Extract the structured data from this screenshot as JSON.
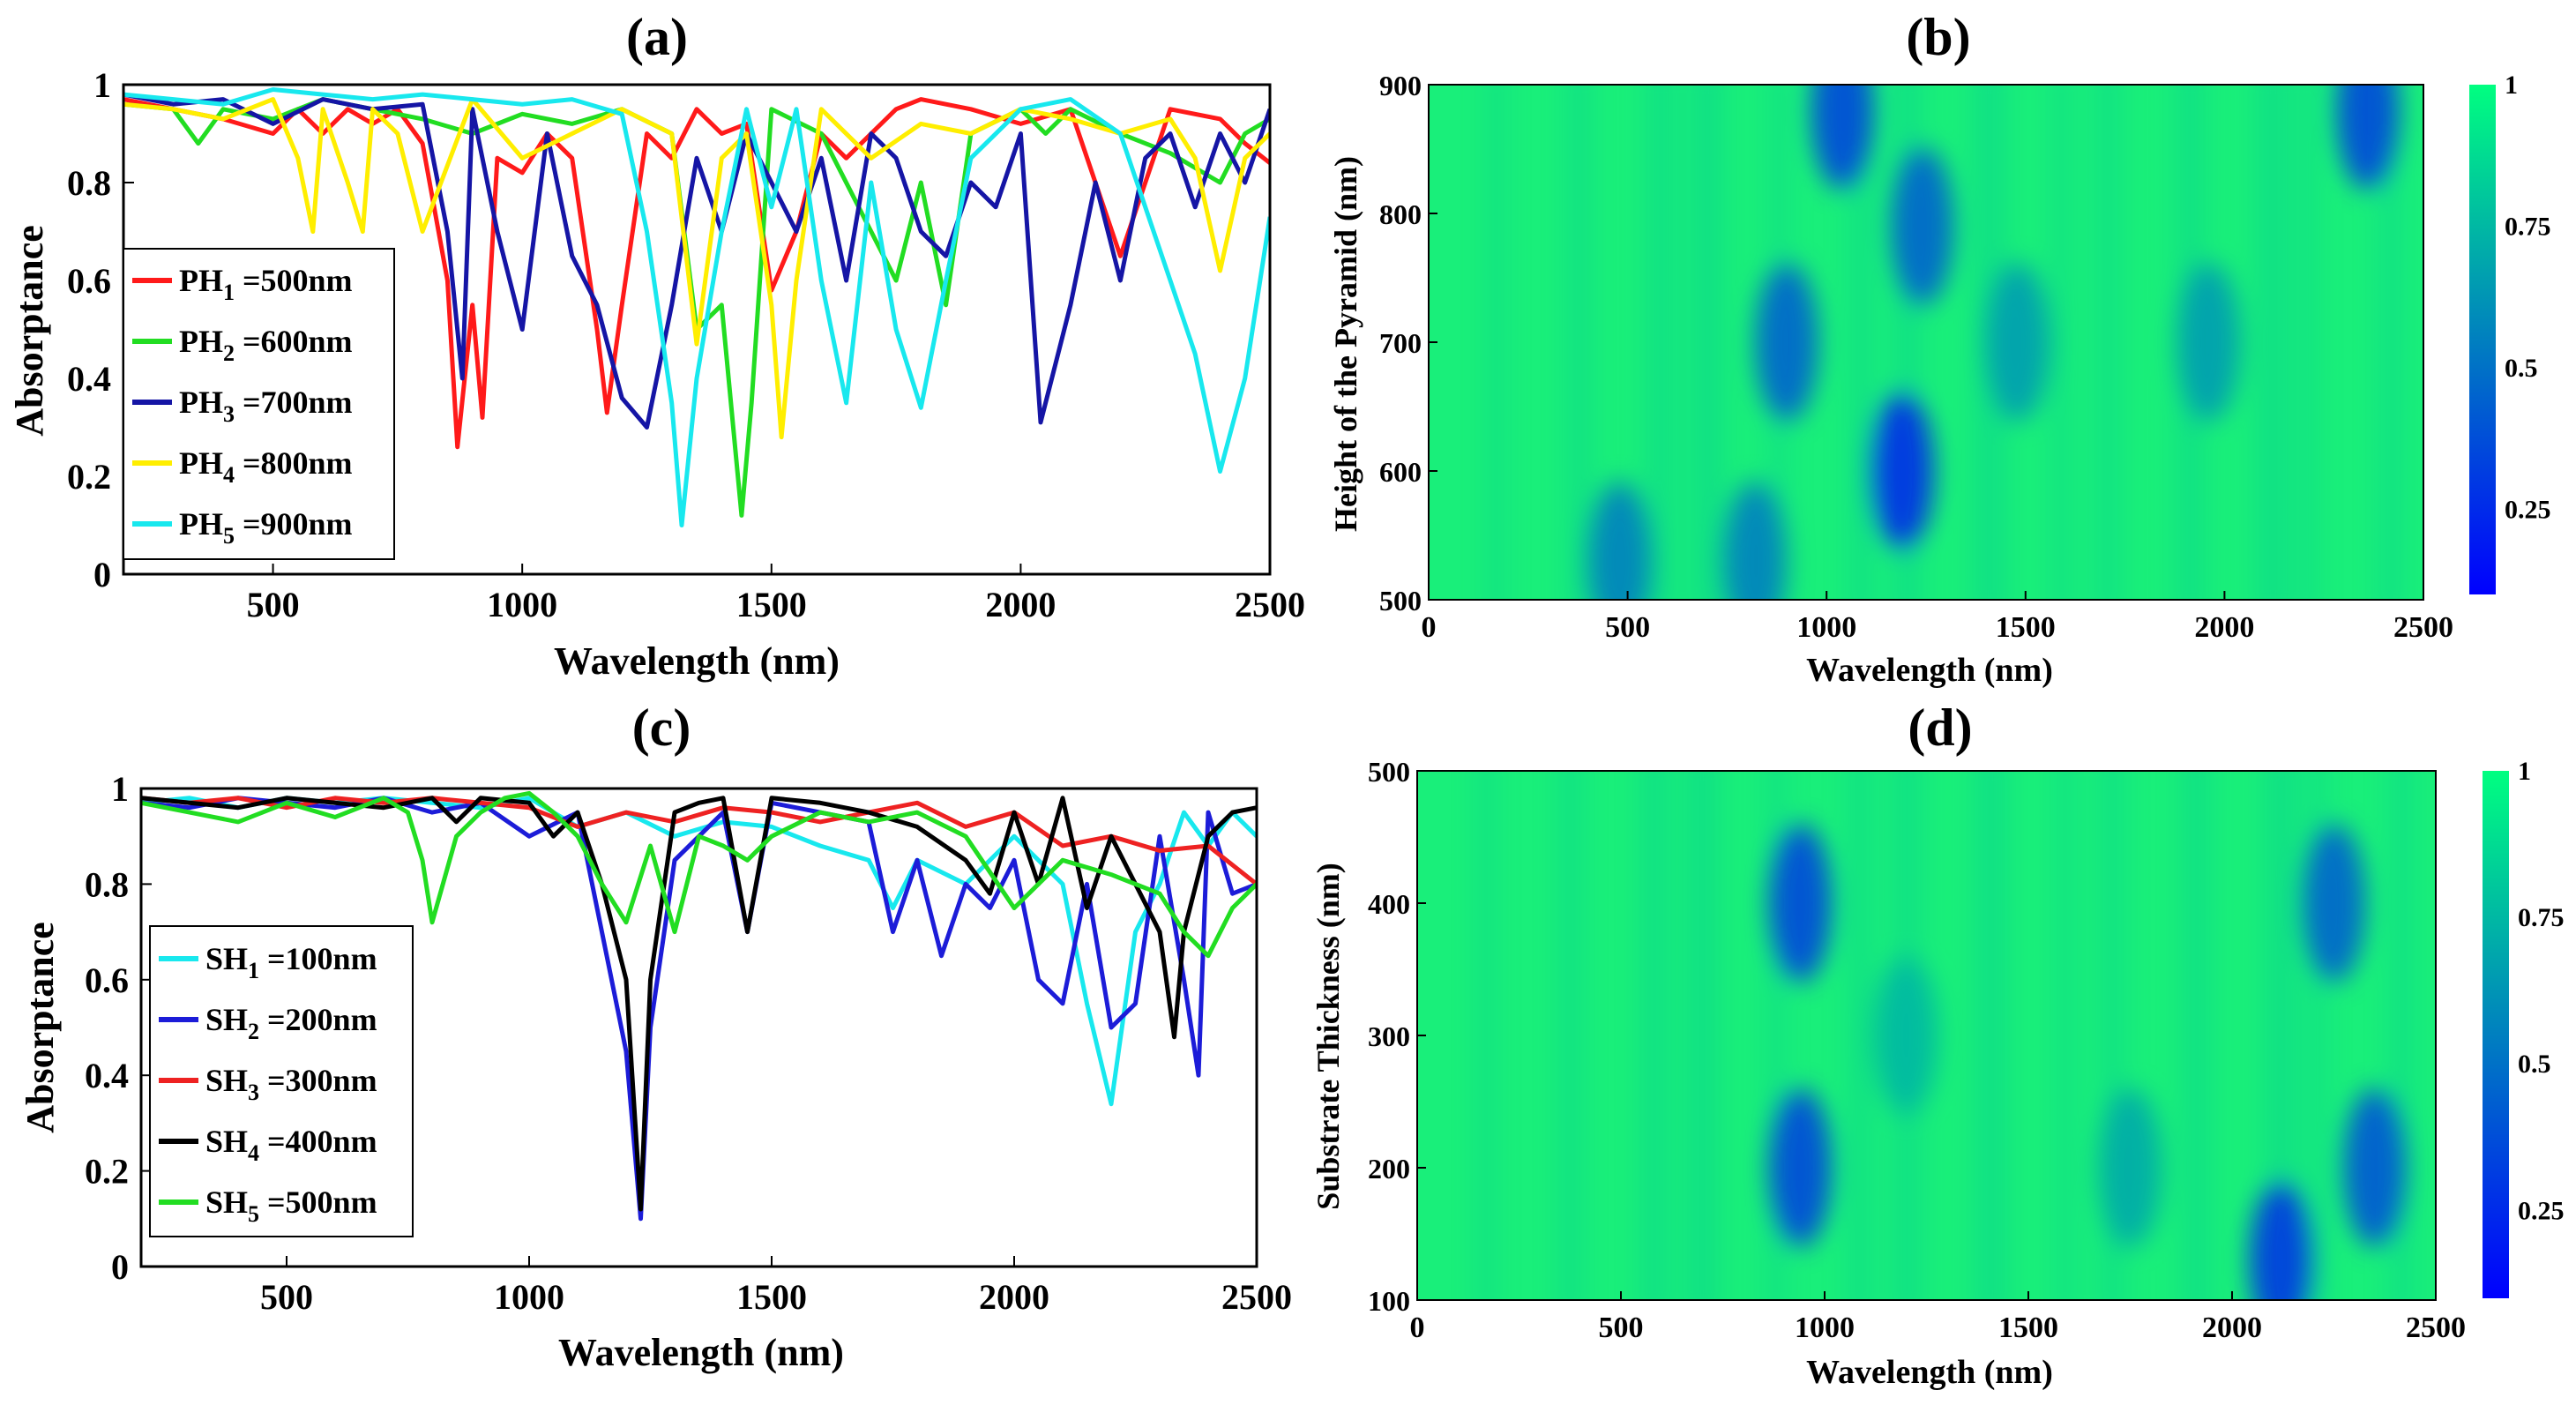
{
  "panels": {
    "a": {
      "label": "(a)",
      "xlabel": "Wavelength (nm)",
      "ylabel": "Absorptance",
      "xticks": [
        "500",
        "1000",
        "1500",
        "2000",
        "2500"
      ],
      "yticks": [
        "0",
        "0.2",
        "0.4",
        "0.6",
        "0.8",
        "1"
      ],
      "legend": [
        {
          "main": "PH",
          "sub": "1",
          "rest": " =500nm"
        },
        {
          "main": "PH",
          "sub": "2",
          "rest": " =600nm"
        },
        {
          "main": "PH",
          "sub": "3",
          "rest": " =700nm"
        },
        {
          "main": "PH",
          "sub": "4",
          "rest": " =800nm"
        },
        {
          "main": "PH",
          "sub": "5",
          "rest": " =900nm"
        }
      ]
    },
    "b": {
      "label": "(b)",
      "xlabel": "Wavelength (nm)",
      "ylabel": "Height of the Pyramid (nm)",
      "xticks": [
        "0",
        "500",
        "1000",
        "1500",
        "2000",
        "2500"
      ],
      "yticks": [
        "500",
        "600",
        "700",
        "800",
        "900"
      ],
      "cbticks": [
        "0.25",
        "0.5",
        "0.75",
        "1"
      ]
    },
    "c": {
      "label": "(c)",
      "xlabel": "Wavelength (nm)",
      "ylabel": "Absorptance",
      "xticks": [
        "500",
        "1000",
        "1500",
        "2000",
        "2500"
      ],
      "yticks": [
        "0",
        "0.2",
        "0.4",
        "0.6",
        "0.8",
        "1"
      ],
      "legend": [
        {
          "main": "SH",
          "sub": "1",
          "rest": " =100nm"
        },
        {
          "main": "SH",
          "sub": "2",
          "rest": " =200nm"
        },
        {
          "main": "SH",
          "sub": "3",
          "rest": " =300nm"
        },
        {
          "main": "SH",
          "sub": "4",
          "rest": " =400nm"
        },
        {
          "main": "SH",
          "sub": "5",
          "rest": " =500nm"
        }
      ]
    },
    "d": {
      "label": "(d)",
      "xlabel": "Wavelength (nm)",
      "ylabel": "Substrate Thickness (nm)",
      "xticks": [
        "0",
        "500",
        "1000",
        "1500",
        "2000",
        "2500"
      ],
      "yticks": [
        "100",
        "200",
        "300",
        "400",
        "500"
      ],
      "cbticks": [
        "0.25",
        "0.5",
        "0.75",
        "1"
      ]
    }
  },
  "chart_data": [
    {
      "id": "a",
      "type": "line",
      "title": "(a)",
      "xlabel": "Wavelength (nm)",
      "ylabel": "Absorptance",
      "xlim": [
        200,
        2500
      ],
      "ylim": [
        0,
        1
      ],
      "series": [
        {
          "name": "PH1 =500nm",
          "color": "#ff1a1a",
          "x": [
            200,
            300,
            400,
            500,
            550,
            600,
            650,
            700,
            750,
            800,
            850,
            870,
            900,
            920,
            950,
            1000,
            1050,
            1100,
            1150,
            1170,
            1200,
            1250,
            1300,
            1350,
            1400,
            1450,
            1500,
            1550,
            1600,
            1650,
            1700,
            1750,
            1800,
            1900,
            2000,
            2100,
            2200,
            2300,
            2400,
            2450,
            2500
          ],
          "y": [
            0.97,
            0.95,
            0.93,
            0.9,
            0.95,
            0.9,
            0.95,
            0.92,
            0.95,
            0.88,
            0.6,
            0.26,
            0.55,
            0.32,
            0.85,
            0.82,
            0.9,
            0.85,
            0.5,
            0.33,
            0.55,
            0.9,
            0.85,
            0.95,
            0.9,
            0.92,
            0.58,
            0.7,
            0.9,
            0.85,
            0.9,
            0.95,
            0.97,
            0.95,
            0.92,
            0.95,
            0.65,
            0.95,
            0.93,
            0.88,
            0.84
          ]
        },
        {
          "name": "PH2 =600nm",
          "color": "#22dd22",
          "x": [
            200,
            300,
            350,
            400,
            500,
            600,
            700,
            800,
            900,
            1000,
            1100,
            1200,
            1300,
            1350,
            1400,
            1440,
            1460,
            1500,
            1600,
            1700,
            1750,
            1800,
            1850,
            1900,
            2000,
            2050,
            2100,
            2200,
            2300,
            2400,
            2450,
            2500
          ],
          "y": [
            0.96,
            0.95,
            0.88,
            0.95,
            0.93,
            0.97,
            0.95,
            0.93,
            0.9,
            0.94,
            0.92,
            0.95,
            0.9,
            0.5,
            0.55,
            0.12,
            0.35,
            0.95,
            0.9,
            0.7,
            0.6,
            0.8,
            0.55,
            0.9,
            0.95,
            0.9,
            0.95,
            0.9,
            0.86,
            0.8,
            0.9,
            0.93
          ]
        },
        {
          "name": "PH3 =700nm",
          "color": "#1515a5",
          "x": [
            200,
            300,
            400,
            500,
            600,
            700,
            800,
            850,
            880,
            900,
            950,
            1000,
            1050,
            1100,
            1150,
            1200,
            1250,
            1300,
            1350,
            1400,
            1450,
            1500,
            1550,
            1600,
            1650,
            1700,
            1750,
            1800,
            1850,
            1900,
            1950,
            2000,
            2040,
            2100,
            2150,
            2200,
            2250,
            2300,
            2350,
            2400,
            2450,
            2500
          ],
          "y": [
            0.98,
            0.96,
            0.97,
            0.92,
            0.97,
            0.95,
            0.96,
            0.7,
            0.4,
            0.95,
            0.7,
            0.5,
            0.9,
            0.65,
            0.55,
            0.36,
            0.3,
            0.55,
            0.85,
            0.7,
            0.9,
            0.8,
            0.7,
            0.85,
            0.6,
            0.9,
            0.85,
            0.7,
            0.65,
            0.8,
            0.75,
            0.9,
            0.31,
            0.55,
            0.8,
            0.6,
            0.85,
            0.9,
            0.75,
            0.9,
            0.8,
            0.95
          ]
        },
        {
          "name": "PH4 =800nm",
          "color": "#ffee00",
          "x": [
            200,
            300,
            400,
            500,
            550,
            580,
            600,
            650,
            680,
            700,
            750,
            800,
            900,
            1000,
            1100,
            1200,
            1300,
            1350,
            1400,
            1450,
            1500,
            1520,
            1550,
            1600,
            1700,
            1800,
            1900,
            2000,
            2100,
            2200,
            2300,
            2350,
            2400,
            2450,
            2500
          ],
          "y": [
            0.96,
            0.95,
            0.93,
            0.97,
            0.85,
            0.7,
            0.95,
            0.8,
            0.7,
            0.95,
            0.9,
            0.7,
            0.97,
            0.85,
            0.9,
            0.95,
            0.9,
            0.47,
            0.85,
            0.9,
            0.55,
            0.28,
            0.6,
            0.95,
            0.85,
            0.92,
            0.9,
            0.95,
            0.93,
            0.9,
            0.93,
            0.85,
            0.62,
            0.85,
            0.9
          ]
        },
        {
          "name": "PH5 =900nm",
          "color": "#18e8ee",
          "x": [
            200,
            300,
            400,
            500,
            600,
            700,
            800,
            900,
            1000,
            1100,
            1200,
            1250,
            1300,
            1320,
            1350,
            1400,
            1450,
            1500,
            1550,
            1600,
            1650,
            1700,
            1750,
            1800,
            1850,
            1900,
            2000,
            2100,
            2200,
            2300,
            2350,
            2400,
            2450,
            2500
          ],
          "y": [
            0.98,
            0.97,
            0.96,
            0.99,
            0.98,
            0.97,
            0.98,
            0.97,
            0.96,
            0.97,
            0.94,
            0.7,
            0.35,
            0.1,
            0.4,
            0.7,
            0.95,
            0.75,
            0.95,
            0.6,
            0.35,
            0.8,
            0.5,
            0.34,
            0.6,
            0.85,
            0.95,
            0.97,
            0.9,
            0.6,
            0.45,
            0.21,
            0.4,
            0.73
          ]
        }
      ]
    },
    {
      "id": "b",
      "type": "heatmap",
      "title": "(b)",
      "xlabel": "Wavelength (nm)",
      "ylabel": "Height of the Pyramid (nm)",
      "xlim": [
        0,
        2500
      ],
      "ylim": [
        500,
        900
      ],
      "clim": [
        0.1,
        1
      ],
      "colorbar_ticks": [
        0.25,
        0.5,
        0.75,
        1
      ],
      "background": 0.93,
      "features": [
        {
          "x": 900,
          "y": 700,
          "value": 0.45
        },
        {
          "x": 1190,
          "y": 600,
          "value": 0.25
        },
        {
          "x": 1240,
          "y": 790,
          "value": 0.45
        },
        {
          "x": 1040,
          "y": 880,
          "value": 0.35
        },
        {
          "x": 2360,
          "y": 880,
          "value": 0.35
        },
        {
          "x": 1480,
          "y": 700,
          "value": 0.65
        },
        {
          "x": 1960,
          "y": 700,
          "value": 0.65
        },
        {
          "x": 480,
          "y": 530,
          "value": 0.55
        },
        {
          "x": 820,
          "y": 530,
          "value": 0.55
        }
      ]
    },
    {
      "id": "c",
      "type": "line",
      "title": "(c)",
      "xlabel": "Wavelength (nm)",
      "ylabel": "Absorptance",
      "xlim": [
        200,
        2500
      ],
      "ylim": [
        0,
        1
      ],
      "series": [
        {
          "name": "SH1 =100nm",
          "color": "#18e8ee",
          "x": [
            200,
            300,
            400,
            500,
            600,
            700,
            800,
            900,
            1000,
            1100,
            1200,
            1300,
            1400,
            1500,
            1600,
            1700,
            1750,
            1800,
            1900,
            2000,
            2100,
            2150,
            2200,
            2250,
            2300,
            2350,
            2400,
            2450,
            2500
          ],
          "y": [
            0.97,
            0.98,
            0.96,
            0.98,
            0.97,
            0.98,
            0.97,
            0.96,
            0.98,
            0.92,
            0.95,
            0.9,
            0.93,
            0.92,
            0.88,
            0.85,
            0.75,
            0.85,
            0.8,
            0.9,
            0.8,
            0.55,
            0.34,
            0.7,
            0.8,
            0.95,
            0.88,
            0.95,
            0.9
          ]
        },
        {
          "name": "SH2 =200nm",
          "color": "#1c1cd8",
          "x": [
            200,
            300,
            400,
            500,
            600,
            700,
            800,
            900,
            1000,
            1100,
            1150,
            1200,
            1230,
            1250,
            1300,
            1350,
            1400,
            1450,
            1500,
            1600,
            1700,
            1750,
            1800,
            1850,
            1900,
            1950,
            2000,
            2050,
            2100,
            2150,
            2200,
            2250,
            2300,
            2350,
            2380,
            2400,
            2450,
            2500
          ],
          "y": [
            0.97,
            0.96,
            0.98,
            0.97,
            0.96,
            0.98,
            0.95,
            0.97,
            0.9,
            0.95,
            0.7,
            0.45,
            0.1,
            0.5,
            0.85,
            0.9,
            0.95,
            0.7,
            0.97,
            0.95,
            0.93,
            0.7,
            0.85,
            0.65,
            0.8,
            0.75,
            0.85,
            0.6,
            0.55,
            0.8,
            0.5,
            0.55,
            0.9,
            0.6,
            0.4,
            0.95,
            0.78,
            0.8
          ]
        },
        {
          "name": "SH3 =300nm",
          "color": "#ee2222",
          "x": [
            200,
            300,
            400,
            500,
            600,
            700,
            800,
            900,
            1000,
            1100,
            1200,
            1300,
            1400,
            1500,
            1600,
            1700,
            1800,
            1900,
            2000,
            2100,
            2200,
            2300,
            2400,
            2500
          ],
          "y": [
            0.98,
            0.97,
            0.98,
            0.96,
            0.98,
            0.97,
            0.98,
            0.97,
            0.96,
            0.92,
            0.95,
            0.93,
            0.96,
            0.95,
            0.93,
            0.95,
            0.97,
            0.92,
            0.95,
            0.88,
            0.9,
            0.87,
            0.88,
            0.8
          ]
        },
        {
          "name": "SH4 =400nm",
          "color": "#000000",
          "x": [
            200,
            300,
            400,
            500,
            600,
            700,
            800,
            850,
            900,
            1000,
            1050,
            1100,
            1150,
            1200,
            1230,
            1250,
            1300,
            1350,
            1400,
            1450,
            1500,
            1600,
            1700,
            1800,
            1900,
            1950,
            2000,
            2050,
            2100,
            2150,
            2200,
            2250,
            2300,
            2330,
            2350,
            2400,
            2450,
            2500
          ],
          "y": [
            0.98,
            0.97,
            0.96,
            0.98,
            0.97,
            0.96,
            0.98,
            0.93,
            0.98,
            0.97,
            0.9,
            0.95,
            0.8,
            0.6,
            0.12,
            0.6,
            0.95,
            0.97,
            0.98,
            0.7,
            0.98,
            0.97,
            0.95,
            0.92,
            0.85,
            0.78,
            0.95,
            0.8,
            0.98,
            0.75,
            0.9,
            0.8,
            0.7,
            0.48,
            0.7,
            0.9,
            0.95,
            0.96
          ]
        },
        {
          "name": "SH5 =500nm",
          "color": "#22dd22",
          "x": [
            200,
            300,
            400,
            500,
            600,
            700,
            750,
            780,
            800,
            850,
            900,
            950,
            1000,
            1050,
            1100,
            1150,
            1200,
            1250,
            1300,
            1350,
            1400,
            1450,
            1500,
            1600,
            1700,
            1800,
            1900,
            2000,
            2100,
            2200,
            2300,
            2350,
            2400,
            2450,
            2500
          ],
          "y": [
            0.97,
            0.95,
            0.93,
            0.97,
            0.94,
            0.98,
            0.95,
            0.85,
            0.72,
            0.9,
            0.95,
            0.98,
            0.99,
            0.95,
            0.9,
            0.8,
            0.72,
            0.88,
            0.7,
            0.9,
            0.88,
            0.85,
            0.9,
            0.95,
            0.93,
            0.95,
            0.9,
            0.75,
            0.85,
            0.82,
            0.78,
            0.7,
            0.65,
            0.75,
            0.8
          ]
        }
      ]
    },
    {
      "id": "d",
      "type": "heatmap",
      "title": "(d)",
      "xlabel": "Wavelength (nm)",
      "ylabel": "Substrate Thickness (nm)",
      "xlim": [
        0,
        2500
      ],
      "ylim": [
        100,
        500
      ],
      "clim": [
        0.1,
        1
      ],
      "colorbar_ticks": [
        0.25,
        0.5,
        0.75,
        1
      ],
      "background": 0.93,
      "features": [
        {
          "x": 940,
          "y": 400,
          "value": 0.35
        },
        {
          "x": 940,
          "y": 200,
          "value": 0.35
        },
        {
          "x": 2250,
          "y": 400,
          "value": 0.45
        },
        {
          "x": 2120,
          "y": 130,
          "value": 0.3
        },
        {
          "x": 2350,
          "y": 200,
          "value": 0.4
        },
        {
          "x": 1200,
          "y": 300,
          "value": 0.75
        },
        {
          "x": 1750,
          "y": 200,
          "value": 0.7
        }
      ]
    }
  ]
}
